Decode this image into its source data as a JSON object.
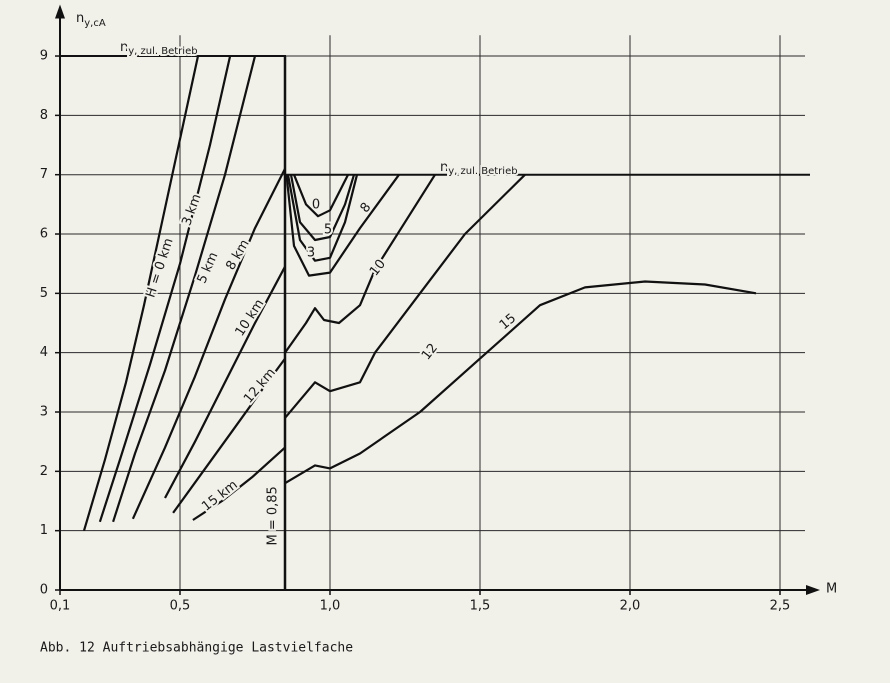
{
  "chart_data": {
    "type": "line",
    "xlabel": "M",
    "ylabel": "n",
    "ylabel_sub": "y,cA",
    "caption": "Abb. 12  Auftriebsabhängige Lastvielfache",
    "xlim": [
      0.1,
      2.6
    ],
    "ylim": [
      0,
      9.7
    ],
    "xticks": [
      {
        "value": 0.1,
        "label": "0,1"
      },
      {
        "value": 0.5,
        "label": "0,5"
      },
      {
        "value": 1.0,
        "label": "1,0"
      },
      {
        "value": 1.5,
        "label": "1,5"
      },
      {
        "value": 2.0,
        "label": "2,0"
      },
      {
        "value": 2.5,
        "label": "2,5"
      }
    ],
    "yticks": [
      0,
      1,
      2,
      3,
      4,
      5,
      6,
      7,
      8,
      9
    ],
    "grid": true,
    "limit": {
      "name": "n",
      "name_sub": "y, zul. Betrieb",
      "x": [
        0.1,
        0.85,
        0.85,
        2.6
      ],
      "values": [
        9,
        9,
        7,
        7
      ]
    },
    "m_line": {
      "value": 0.85,
      "label": "M = 0,85"
    },
    "series": [
      {
        "name": "H = 0 km",
        "color": "#111111",
        "x": [
          0.18,
          0.25,
          0.32,
          0.38,
          0.44,
          0.5,
          0.56
        ],
        "values": [
          1,
          2.2,
          3.5,
          4.8,
          6.2,
          7.6,
          9
        ]
      },
      {
        "name": "3 km",
        "color": "#111111",
        "x": [
          0.233,
          0.3,
          0.4,
          0.5,
          0.6,
          0.667
        ],
        "values": [
          1.15,
          2.2,
          3.8,
          5.5,
          7.5,
          9
        ]
      },
      {
        "name": "5 km",
        "color": "#111111",
        "x": [
          0.277,
          0.35,
          0.45,
          0.55,
          0.65,
          0.75
        ],
        "values": [
          1.15,
          2.3,
          3.7,
          5.3,
          7.0,
          9
        ]
      },
      {
        "name": "8 km",
        "color": "#111111",
        "x": [
          0.343,
          0.45,
          0.55,
          0.65,
          0.75,
          0.85
        ],
        "values": [
          1.2,
          2.4,
          3.6,
          4.9,
          6.1,
          7.1
        ]
      },
      {
        "name": "10 km",
        "color": "#111111",
        "x": [
          0.45,
          0.55,
          0.65,
          0.75,
          0.85
        ],
        "values": [
          1.55,
          2.5,
          3.5,
          4.5,
          5.45
        ]
      },
      {
        "name": "12 km",
        "color": "#111111",
        "x": [
          0.477,
          0.57,
          0.67,
          0.77,
          0.85
        ],
        "values": [
          1.3,
          1.95,
          2.65,
          3.35,
          3.9
        ]
      },
      {
        "name": "15 km",
        "color": "#111111",
        "x": [
          0.543,
          0.64,
          0.74,
          0.85
        ],
        "values": [
          1.18,
          1.5,
          1.9,
          2.4
        ]
      },
      {
        "name": "0",
        "color": "#111111",
        "x": [
          0.88,
          0.92,
          0.96,
          1.0,
          1.04,
          1.06
        ],
        "values": [
          7,
          6.5,
          6.3,
          6.4,
          6.8,
          7
        ]
      },
      {
        "name": "5",
        "color": "#111111",
        "x": [
          0.87,
          0.9,
          0.95,
          1.0,
          1.05,
          1.08
        ],
        "values": [
          7,
          6.2,
          5.9,
          5.95,
          6.5,
          7
        ]
      },
      {
        "name": "3",
        "color": "#111111",
        "x": [
          0.86,
          0.9,
          0.95,
          1.0,
          1.05,
          1.09
        ],
        "values": [
          7,
          5.9,
          5.55,
          5.6,
          6.2,
          7
        ]
      },
      {
        "name": "8",
        "color": "#111111",
        "x": [
          0.855,
          0.88,
          0.93,
          1.0,
          1.1,
          1.23
        ],
        "values": [
          7,
          5.8,
          5.3,
          5.35,
          6.1,
          7
        ]
      },
      {
        "name": "10",
        "color": "#111111",
        "x": [
          0.85,
          0.92,
          0.95,
          0.98,
          1.03,
          1.1,
          1.15,
          1.25,
          1.35
        ],
        "values": [
          4.0,
          4.5,
          4.75,
          4.55,
          4.5,
          4.8,
          5.4,
          6.2,
          7.0
        ]
      },
      {
        "name": "12",
        "color": "#111111",
        "x": [
          0.85,
          0.95,
          1.0,
          1.1,
          1.15,
          1.3,
          1.45,
          1.65
        ],
        "values": [
          2.9,
          3.5,
          3.35,
          3.5,
          4.0,
          5.0,
          6.0,
          7.0
        ]
      },
      {
        "name": "15",
        "color": "#111111",
        "x": [
          0.85,
          0.95,
          1.0,
          1.1,
          1.3,
          1.5,
          1.7,
          1.85,
          2.05,
          2.25,
          2.42
        ],
        "values": [
          1.8,
          2.1,
          2.05,
          2.3,
          3.0,
          3.9,
          4.8,
          5.1,
          5.2,
          5.15,
          5.0
        ]
      }
    ]
  }
}
